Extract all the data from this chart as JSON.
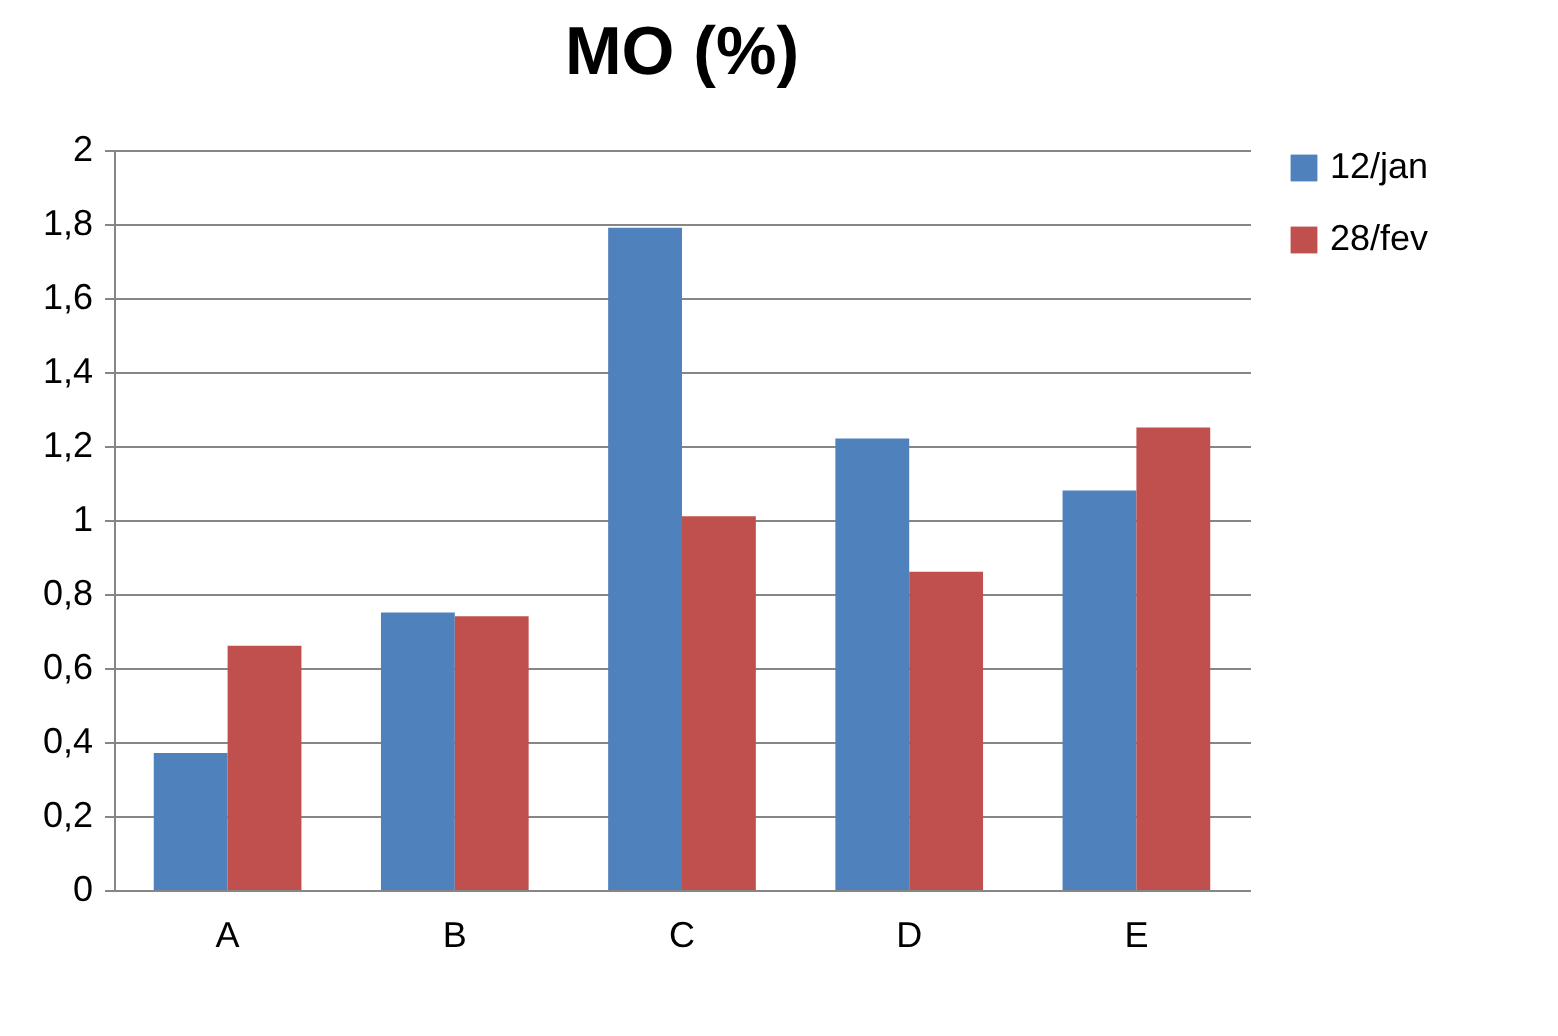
{
  "chart_data": {
    "type": "bar",
    "title": "MO (%)",
    "categories": [
      "A",
      "B",
      "C",
      "D",
      "E"
    ],
    "series": [
      {
        "name": "12/jan",
        "color": "#4f81bd",
        "values": [
          0.37,
          0.75,
          1.79,
          1.22,
          1.08
        ]
      },
      {
        "name": "28/fev",
        "color": "#c0504d",
        "values": [
          0.66,
          0.74,
          1.01,
          0.86,
          1.25
        ]
      }
    ],
    "ylim": [
      0,
      2
    ],
    "yticks": [
      0,
      {
        "value": 0.2,
        "label": "0,2"
      },
      {
        "value": 0.4,
        "label": "0,4"
      },
      {
        "value": 0.6,
        "label": "0,6"
      },
      {
        "value": 0.8,
        "label": "0,8"
      },
      1,
      {
        "value": 1.2,
        "label": "1,2"
      },
      {
        "value": 1.4,
        "label": "1,4"
      },
      {
        "value": 1.6,
        "label": "1,6"
      },
      {
        "value": 1.8,
        "label": "1,8"
      },
      2
    ],
    "grid": "y",
    "legend": "right"
  }
}
